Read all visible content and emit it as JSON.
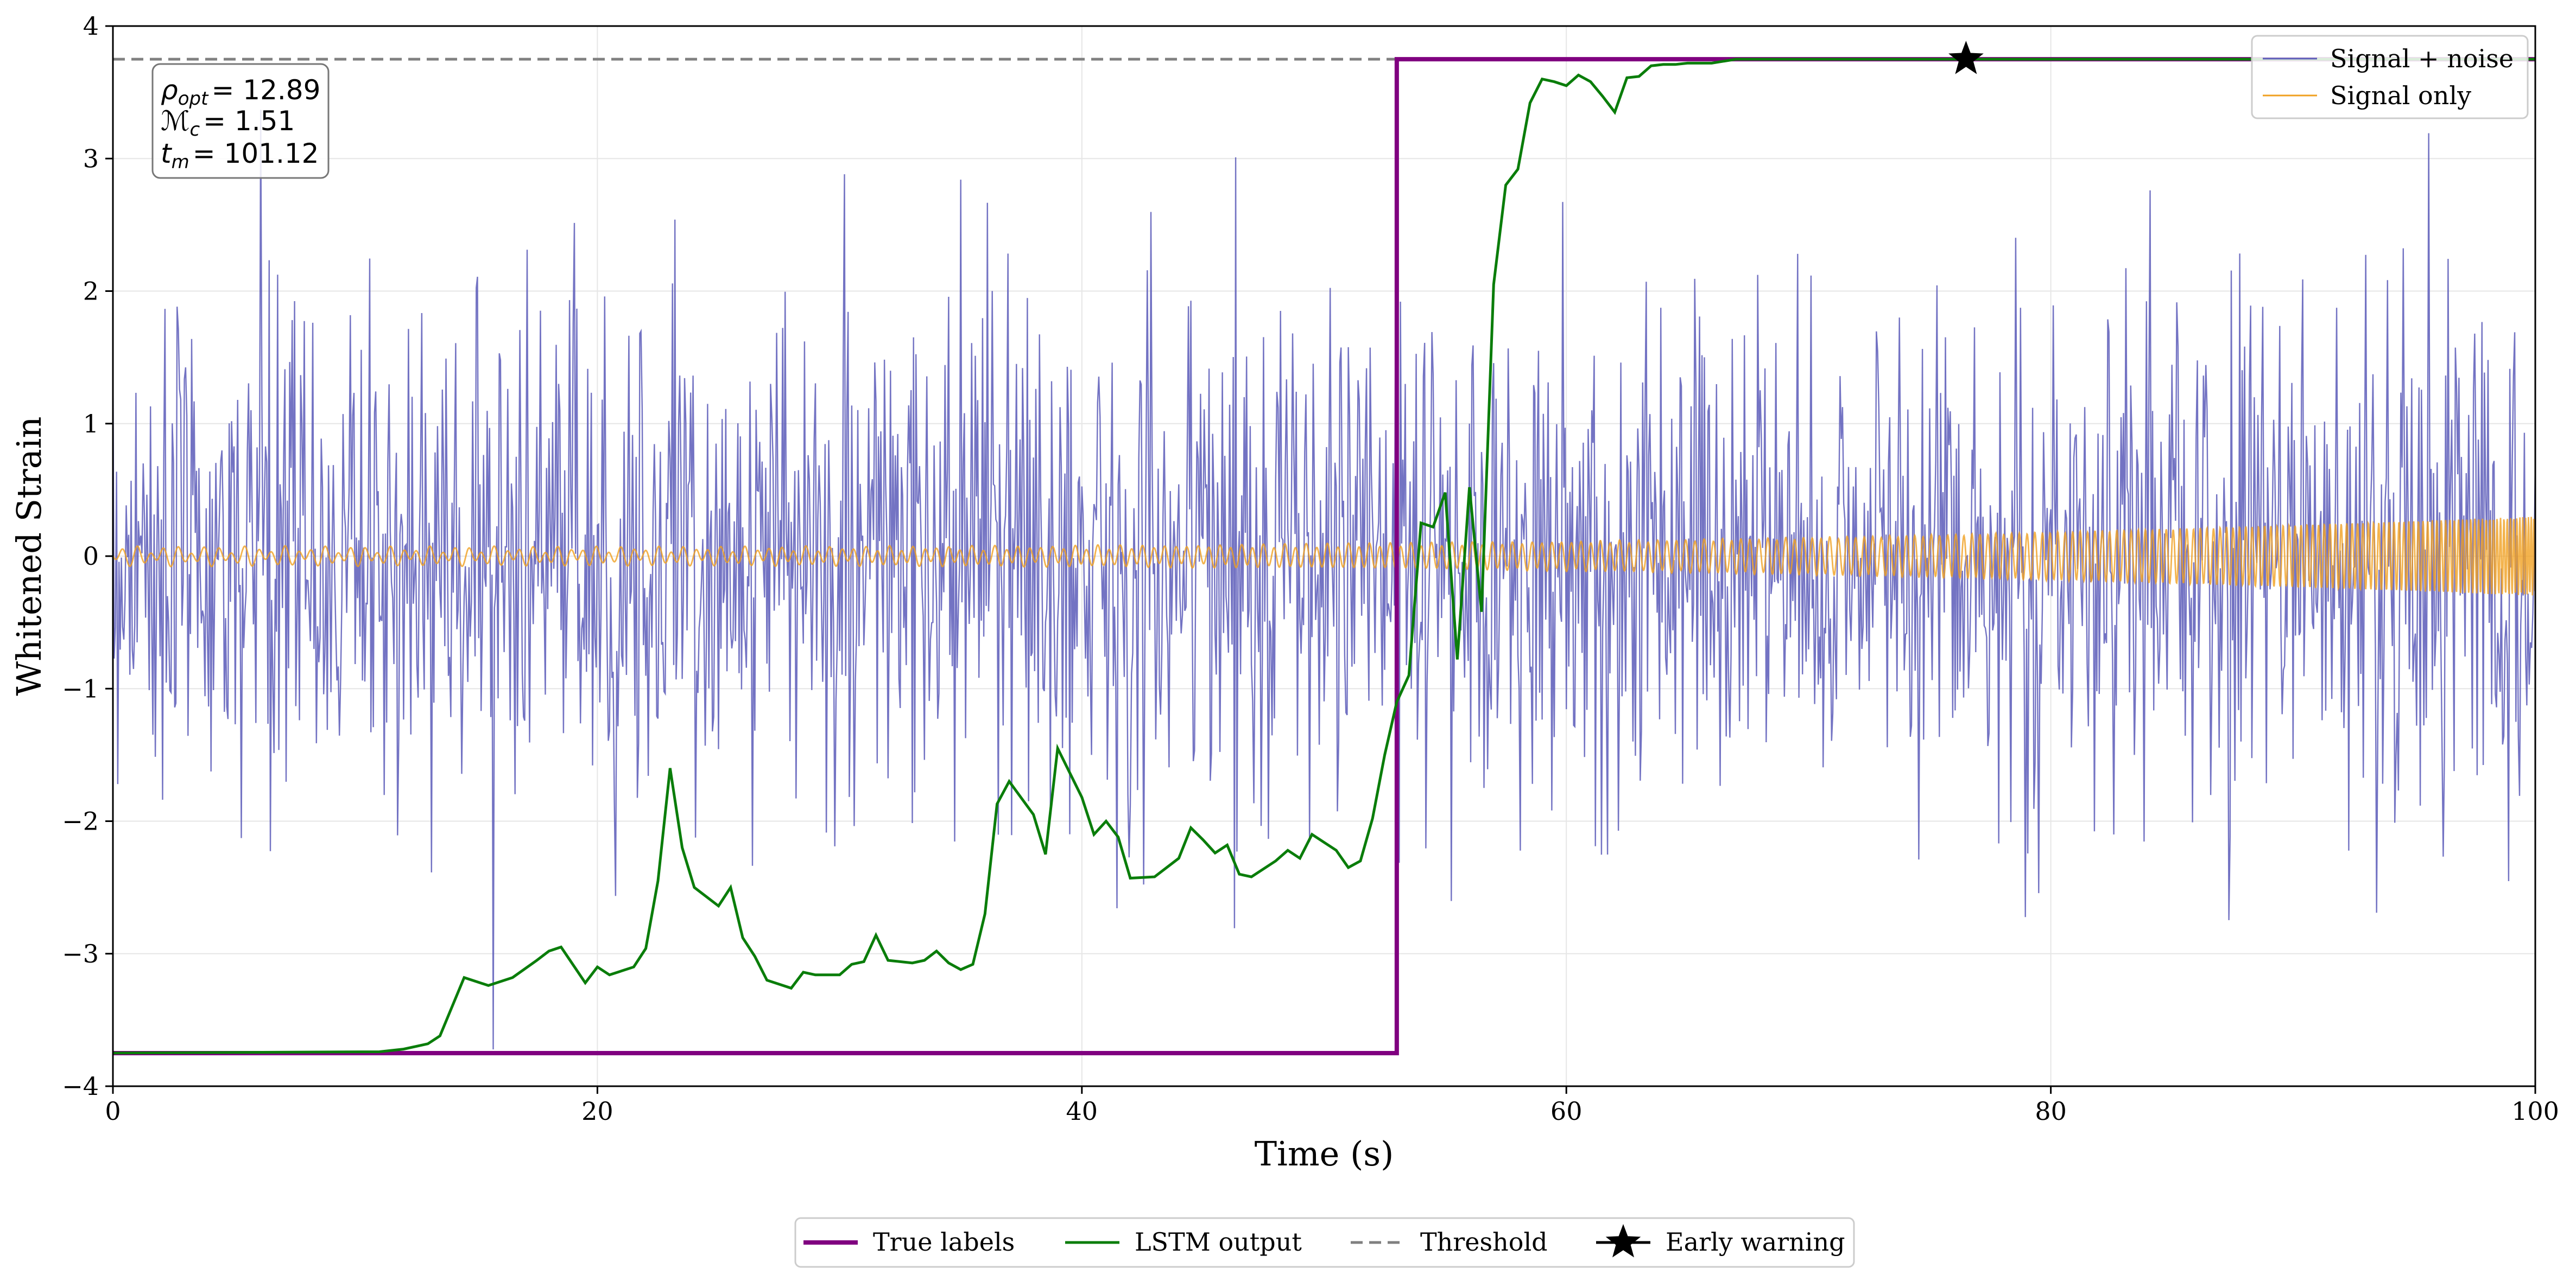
{
  "chart_data": {
    "type": "line",
    "xlabel": "Time (s)",
    "ylabel": "Whitened Strain",
    "xlim": [
      0,
      100
    ],
    "ylim": [
      -4,
      4
    ],
    "x_ticks": [
      0,
      20,
      40,
      60,
      80,
      100
    ],
    "x_tick_labels": [
      "0",
      "20",
      "40",
      "60",
      "80",
      "100"
    ],
    "y_ticks": [
      -4,
      -3,
      -2,
      -1,
      0,
      1,
      2,
      3,
      4
    ],
    "y_tick_labels": [
      "−4",
      "−3",
      "−2",
      "−1",
      "0",
      "1",
      "2",
      "3",
      "4"
    ],
    "grid": true,
    "threshold": 3.75,
    "merger_time_label": "101.12",
    "annotation": {
      "rho_label": "ρ",
      "rho_sub": "opt",
      "rho_value": "= 12.89",
      "mass_label": "ℳ",
      "mass_sub": "c",
      "mass_value": "= 1.51",
      "tm_label": "t",
      "tm_sub": "m",
      "tm_value": "= 101.12"
    },
    "series": [
      {
        "name": "Signal + noise",
        "color": "#5b5bb8",
        "kind": "noise",
        "std": 0.95,
        "samples": 2000
      },
      {
        "name": "Signal only",
        "color": "#f0a020",
        "kind": "chirp",
        "start_amp": 0.05,
        "end_amp": 0.3
      },
      {
        "name": "True labels",
        "color": "#800080",
        "kind": "step",
        "low": -3.75,
        "high": 3.75,
        "step_x": 53
      },
      {
        "name": "LSTM output",
        "color": "#0a7d0a",
        "kind": "line",
        "x": [
          0,
          11,
          12,
          13,
          13.5,
          14.5,
          15.5,
          16.5,
          17.5,
          18,
          18.5,
          19.5,
          20,
          20.5,
          21.5,
          22,
          22.5,
          23,
          23.5,
          24,
          25,
          25.5,
          26,
          26.5,
          27,
          28,
          28.5,
          29,
          30,
          30.5,
          31,
          31.5,
          32,
          33,
          33.5,
          34,
          34.5,
          35,
          35.5,
          36,
          36.5,
          37,
          38,
          38.5,
          39,
          40,
          40.5,
          41,
          41.5,
          42,
          43,
          44,
          44.5,
          45,
          45.5,
          46,
          46.5,
          47,
          48,
          48.5,
          49,
          49.5,
          50,
          50.5,
          51,
          51.5,
          52,
          52.5,
          53,
          53.5,
          54,
          54.5,
          55,
          55.5,
          56,
          56.5,
          57,
          57.5,
          58,
          58.5,
          59,
          59.5,
          60,
          60.5,
          61,
          61.5,
          62,
          62.5,
          63,
          63.5,
          64,
          64.5,
          65,
          66,
          67,
          70,
          75,
          80,
          85,
          90,
          95,
          100
        ],
        "y": [
          -3.75,
          -3.74,
          -3.72,
          -3.68,
          -3.62,
          -3.18,
          -3.24,
          -3.18,
          -3.05,
          -2.98,
          -2.95,
          -3.22,
          -3.1,
          -3.16,
          -3.1,
          -2.96,
          -2.45,
          -1.6,
          -2.2,
          -2.5,
          -2.64,
          -2.5,
          -2.88,
          -3.02,
          -3.2,
          -3.26,
          -3.14,
          -3.16,
          -3.16,
          -3.08,
          -3.06,
          -2.86,
          -3.05,
          -3.07,
          -3.05,
          -2.98,
          -3.07,
          -3.12,
          -3.08,
          -2.7,
          -1.87,
          -1.7,
          -1.95,
          -2.25,
          -1.45,
          -1.82,
          -2.1,
          -2.0,
          -2.12,
          -2.43,
          -2.42,
          -2.28,
          -2.05,
          -2.14,
          -2.24,
          -2.18,
          -2.4,
          -2.42,
          -2.3,
          -2.22,
          -2.28,
          -2.1,
          -2.16,
          -2.22,
          -2.35,
          -2.3,
          -1.98,
          -1.5,
          -1.1,
          -0.9,
          0.25,
          0.22,
          0.48,
          -0.78,
          0.52,
          -0.42,
          2.05,
          2.8,
          2.92,
          3.42,
          3.6,
          3.58,
          3.55,
          3.63,
          3.58,
          3.47,
          3.35,
          3.61,
          3.62,
          3.7,
          3.71,
          3.71,
          3.72,
          3.72,
          3.75,
          3.75,
          3.75,
          3.75,
          3.75,
          3.75,
          3.75,
          3.75
        ]
      },
      {
        "name": "Threshold",
        "color": "#808080",
        "kind": "hline",
        "y": 3.75
      },
      {
        "name": "Early warning",
        "color": "#000000",
        "kind": "marker",
        "x": 76.5,
        "y": 3.75
      }
    ],
    "legend_top_right": [
      "Signal + noise",
      "Signal only"
    ],
    "legend_bottom": [
      "True labels",
      "LSTM output",
      "Threshold",
      "Early warning"
    ]
  }
}
